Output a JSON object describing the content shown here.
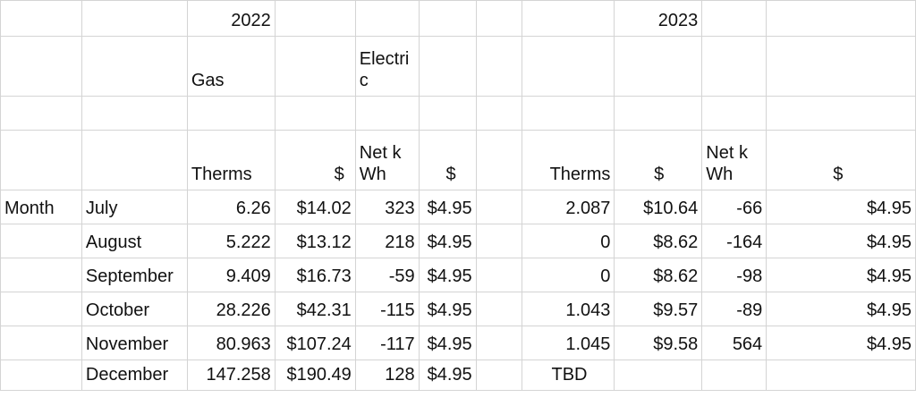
{
  "header": {
    "year_2022": "2022",
    "year_2023": "2023",
    "gas": "Gas",
    "electric": "Electric"
  },
  "columns": {
    "therms": "Therms",
    "dollar": "$",
    "net_kwh": "Net kWh"
  },
  "row_label": "Month",
  "rows": [
    {
      "month": "July",
      "gas_therms_2022": "6.26",
      "gas_cost_2022": "$14.02",
      "net_kwh_2022": "323",
      "elec_cost_2022": "$4.95",
      "gas_therms_2023": "2.087",
      "gas_cost_2023": "$10.64",
      "net_kwh_2023": "-66",
      "elec_cost_2023": "$4.95"
    },
    {
      "month": "August",
      "gas_therms_2022": "5.222",
      "gas_cost_2022": "$13.12",
      "net_kwh_2022": "218",
      "elec_cost_2022": "$4.95",
      "gas_therms_2023": "0",
      "gas_cost_2023": "$8.62",
      "net_kwh_2023": "-164",
      "elec_cost_2023": "$4.95"
    },
    {
      "month": "September",
      "gas_therms_2022": "9.409",
      "gas_cost_2022": "$16.73",
      "net_kwh_2022": "-59",
      "elec_cost_2022": "$4.95",
      "gas_therms_2023": "0",
      "gas_cost_2023": "$8.62",
      "net_kwh_2023": "-98",
      "elec_cost_2023": "$4.95"
    },
    {
      "month": "October",
      "gas_therms_2022": "28.226",
      "gas_cost_2022": "$42.31",
      "net_kwh_2022": "-115",
      "elec_cost_2022": "$4.95",
      "gas_therms_2023": "1.043",
      "gas_cost_2023": "$9.57",
      "net_kwh_2023": "-89",
      "elec_cost_2023": "$4.95"
    },
    {
      "month": "November",
      "gas_therms_2022": "80.963",
      "gas_cost_2022": "$107.24",
      "net_kwh_2022": "-117",
      "elec_cost_2022": "$4.95",
      "gas_therms_2023": "1.045",
      "gas_cost_2023": "$9.58",
      "net_kwh_2023": "564",
      "elec_cost_2023": "$4.95"
    },
    {
      "month": "December",
      "gas_therms_2022": "147.258",
      "gas_cost_2022": "$190.49",
      "net_kwh_2022": "128",
      "elec_cost_2022": "$4.95",
      "gas_therms_2023": "TBD",
      "gas_cost_2023": "",
      "net_kwh_2023": "",
      "elec_cost_2023": ""
    }
  ]
}
